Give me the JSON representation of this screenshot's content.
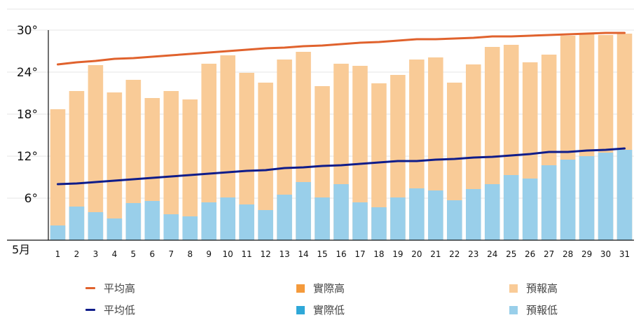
{
  "chart_data": {
    "type": "bar",
    "month_label": "5月",
    "x": [
      "1",
      "2",
      "3",
      "4",
      "5",
      "6",
      "7",
      "8",
      "9",
      "10",
      "11",
      "12",
      "13",
      "14",
      "15",
      "16",
      "17",
      "18",
      "19",
      "20",
      "21",
      "22",
      "23",
      "24",
      "25",
      "26",
      "27",
      "28",
      "29",
      "30",
      "31"
    ],
    "ylim": [
      0,
      33
    ],
    "yticks": [
      {
        "value": 6,
        "label": "6°"
      },
      {
        "value": 12,
        "label": "12°"
      },
      {
        "value": 18,
        "label": "18°"
      },
      {
        "value": 24,
        "label": "24°"
      },
      {
        "value": 30,
        "label": "30°"
      }
    ],
    "grid": true,
    "legend_position": "bottom",
    "series": [
      {
        "name": "預報高",
        "kind": "bar",
        "color": "#f9cb97",
        "values": [
          18.7,
          21.3,
          25.0,
          21.1,
          22.9,
          20.3,
          21.3,
          20.1,
          25.2,
          26.4,
          23.9,
          22.5,
          25.8,
          26.9,
          22.0,
          25.2,
          24.9,
          22.4,
          23.6,
          25.8,
          26.1,
          22.5,
          25.1,
          27.6,
          27.9,
          25.4,
          26.5,
          29.2,
          29.5,
          29.3,
          29.5
        ]
      },
      {
        "name": "預報低",
        "kind": "bar",
        "color": "#99cfea",
        "values": [
          2.1,
          4.8,
          4.0,
          3.1,
          5.3,
          5.6,
          3.7,
          3.4,
          5.4,
          6.1,
          5.1,
          4.3,
          6.5,
          8.3,
          6.1,
          8.0,
          5.4,
          4.7,
          6.1,
          7.4,
          7.1,
          5.7,
          7.3,
          8.0,
          9.3,
          8.8,
          10.7,
          11.5,
          12.0,
          12.5,
          12.9
        ]
      },
      {
        "name": "平均高",
        "kind": "line",
        "color": "#e0622d",
        "values": [
          25.1,
          25.4,
          25.6,
          25.9,
          26.0,
          26.2,
          26.4,
          26.6,
          26.8,
          27.0,
          27.2,
          27.4,
          27.5,
          27.7,
          27.8,
          28.0,
          28.2,
          28.3,
          28.5,
          28.7,
          28.7,
          28.8,
          28.9,
          29.1,
          29.1,
          29.2,
          29.3,
          29.4,
          29.5,
          29.6,
          29.6
        ]
      },
      {
        "name": "平均低",
        "kind": "line",
        "color": "#0f1c8a",
        "values": [
          8.0,
          8.1,
          8.3,
          8.5,
          8.7,
          8.9,
          9.1,
          9.3,
          9.5,
          9.7,
          9.9,
          10.0,
          10.3,
          10.4,
          10.6,
          10.7,
          10.9,
          11.1,
          11.3,
          11.3,
          11.5,
          11.6,
          11.8,
          11.9,
          12.1,
          12.3,
          12.6,
          12.6,
          12.8,
          12.9,
          13.1
        ]
      }
    ],
    "legend": [
      {
        "name": "平均高",
        "kind": "line",
        "color": "#e0622d"
      },
      {
        "name": "實際高",
        "kind": "box",
        "color": "#f49a3c"
      },
      {
        "name": "預報高",
        "kind": "box",
        "color": "#f9cb97"
      },
      {
        "name": "平均低",
        "kind": "line",
        "color": "#0f1c8a"
      },
      {
        "name": "實際低",
        "kind": "box",
        "color": "#2fa8d8"
      },
      {
        "name": "預報低",
        "kind": "box",
        "color": "#99cfea"
      }
    ]
  }
}
